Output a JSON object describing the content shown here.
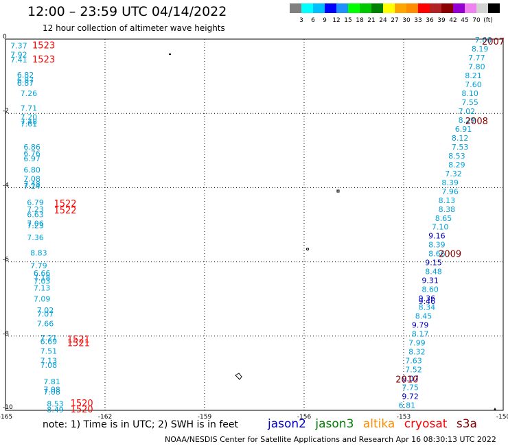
{
  "header": {
    "title": "12:00 – 23:59 UTC 04/14/2022",
    "subtitle": "12 hour collection of altimeter wave heights"
  },
  "colorbar": {
    "colors": [
      "#808080",
      "#00ffff",
      "#00bfff",
      "#0000ff",
      "#1e90ff",
      "#00ff00",
      "#00c800",
      "#008000",
      "#ffff00",
      "#ffa500",
      "#ff8c00",
      "#ff0000",
      "#b22222",
      "#8b0000",
      "#9400d3",
      "#ee82ee",
      "#d3d3d3",
      "#000000"
    ],
    "labels": [
      "3",
      "6",
      "9",
      "12",
      "15",
      "18",
      "21",
      "24",
      "27",
      "30",
      "33",
      "36",
      "39",
      "42",
      "45",
      "70",
      "(ft)"
    ]
  },
  "footer": {
    "note": "note:  1) Time is in UTC;  2) SWH is in feet",
    "legend": [
      {
        "name": "jason2",
        "color": "#0000cc"
      },
      {
        "name": "jason3",
        "color": "#008000"
      },
      {
        "name": "altika",
        "color": "#ff8c00"
      },
      {
        "name": "cryosat",
        "color": "#ff0000"
      },
      {
        "name": "s3a",
        "color": "#8b0000"
      }
    ],
    "credit": "NOAA/NESDIS Center for Satellite Applications and Research     Apr 16 08:30:13 UTC 2022"
  },
  "chart_data": {
    "type": "scatter",
    "xlim": [
      -165,
      -150
    ],
    "ylim": [
      -10,
      0
    ],
    "x_ticks": [
      "-165",
      "-162",
      "-159",
      "-156",
      "-153",
      "-150"
    ],
    "y_ticks": [
      "0",
      "-2",
      "-4",
      "-6",
      "-8",
      "-10"
    ],
    "grid": true,
    "series": [
      {
        "color": "#00a0d8",
        "points": [
          {
            "x": -164.6,
            "y": -0.18,
            "v": "7.37"
          },
          {
            "x": -164.6,
            "y": -0.42,
            "v": "7.92"
          },
          {
            "x": -164.6,
            "y": -0.55,
            "v": "7.41"
          },
          {
            "x": -164.4,
            "y": -0.96,
            "v": "6.82"
          },
          {
            "x": -164.4,
            "y": -1.1,
            "v": "6.87"
          },
          {
            "x": -164.4,
            "y": -1.18,
            "v": "6.87"
          },
          {
            "x": -164.3,
            "y": -1.46,
            "v": "7.26"
          },
          {
            "x": -164.3,
            "y": -1.86,
            "v": "7.71"
          },
          {
            "x": -164.3,
            "y": -2.1,
            "v": "7.20"
          },
          {
            "x": -164.3,
            "y": -2.22,
            "v": "7.48"
          },
          {
            "x": -164.3,
            "y": -2.28,
            "v": "7.61"
          },
          {
            "x": -164.2,
            "y": -2.9,
            "v": "6.86"
          },
          {
            "x": -164.2,
            "y": -3.08,
            "v": "6.76"
          },
          {
            "x": -164.2,
            "y": -3.22,
            "v": "6.97"
          },
          {
            "x": -164.2,
            "y": -3.52,
            "v": "6.80"
          },
          {
            "x": -164.2,
            "y": -3.76,
            "v": "7.08"
          },
          {
            "x": -164.2,
            "y": -3.9,
            "v": "7.48"
          },
          {
            "x": -164.2,
            "y": -3.96,
            "v": "7.24"
          },
          {
            "x": -164.1,
            "y": -4.4,
            "v": "6.79"
          },
          {
            "x": -164.1,
            "y": -4.58,
            "v": "7.23"
          },
          {
            "x": -164.1,
            "y": -4.72,
            "v": "6.63"
          },
          {
            "x": -164.1,
            "y": -4.96,
            "v": "7.06"
          },
          {
            "x": -164.1,
            "y": -5.02,
            "v": "7.23"
          },
          {
            "x": -164.1,
            "y": -5.34,
            "v": "7.36"
          },
          {
            "x": -164.0,
            "y": -5.76,
            "v": "8.83"
          },
          {
            "x": -164.0,
            "y": -6.1,
            "v": "7.79"
          },
          {
            "x": -163.9,
            "y": -6.3,
            "v": "6.66"
          },
          {
            "x": -163.9,
            "y": -6.42,
            "v": "7.18"
          },
          {
            "x": -163.9,
            "y": -6.52,
            "v": "7.03"
          },
          {
            "x": -163.9,
            "y": -6.7,
            "v": "7.13"
          },
          {
            "x": -163.9,
            "y": -7.0,
            "v": "7.09"
          },
          {
            "x": -163.8,
            "y": -7.3,
            "v": "7.02"
          },
          {
            "x": -163.8,
            "y": -7.4,
            "v": "7.07"
          },
          {
            "x": -163.8,
            "y": -7.66,
            "v": "7.66"
          },
          {
            "x": -163.7,
            "y": -8.04,
            "v": "7.21"
          },
          {
            "x": -163.7,
            "y": -8.14,
            "v": "6.69"
          },
          {
            "x": -163.7,
            "y": -8.4,
            "v": "7.51"
          },
          {
            "x": -163.7,
            "y": -8.66,
            "v": "7.13"
          },
          {
            "x": -163.7,
            "y": -8.78,
            "v": "7.08"
          },
          {
            "x": -163.6,
            "y": -9.22,
            "v": "7.81"
          },
          {
            "x": -163.6,
            "y": -9.44,
            "v": "7.08"
          },
          {
            "x": -163.6,
            "y": -9.5,
            "v": "7.08"
          },
          {
            "x": -163.5,
            "y": -9.82,
            "v": "8.53"
          },
          {
            "x": -163.5,
            "y": -9.98,
            "v": "8.49"
          }
        ]
      },
      {
        "color": "#00a0d8",
        "points": [
          {
            "x": -150.6,
            "y": -0.02,
            "v": "7.66"
          },
          {
            "x": -150.7,
            "y": -0.26,
            "v": "8.19"
          },
          {
            "x": -150.8,
            "y": -0.5,
            "v": "7.77"
          },
          {
            "x": -150.8,
            "y": -0.74,
            "v": "7.80"
          },
          {
            "x": -150.9,
            "y": -0.98,
            "v": "8.21"
          },
          {
            "x": -150.9,
            "y": -1.22,
            "v": "7.60"
          },
          {
            "x": -151.0,
            "y": -1.46,
            "v": "8.10"
          },
          {
            "x": -151.0,
            "y": -1.7,
            "v": "7.55"
          },
          {
            "x": -151.1,
            "y": -1.94,
            "v": "7.02"
          },
          {
            "x": -151.1,
            "y": -2.18,
            "v": "8.29"
          },
          {
            "x": -151.2,
            "y": -2.42,
            "v": "6.91"
          },
          {
            "x": -151.3,
            "y": -2.66,
            "v": "8.12"
          },
          {
            "x": -151.3,
            "y": -2.9,
            "v": "7.53"
          },
          {
            "x": -151.4,
            "y": -3.14,
            "v": "8.53"
          },
          {
            "x": -151.4,
            "y": -3.38,
            "v": "8.29"
          },
          {
            "x": -151.5,
            "y": -3.62,
            "v": "7.32"
          },
          {
            "x": -151.6,
            "y": -3.86,
            "v": "8.39"
          },
          {
            "x": -151.6,
            "y": -4.1,
            "v": "7.96"
          },
          {
            "x": -151.7,
            "y": -4.34,
            "v": "8.13"
          },
          {
            "x": -151.7,
            "y": -4.58,
            "v": "8.38"
          },
          {
            "x": -151.8,
            "y": -4.82,
            "v": "8.65"
          },
          {
            "x": -151.9,
            "y": -5.06,
            "v": "7.10"
          },
          {
            "x": -152.0,
            "y": -5.54,
            "v": "8.39"
          },
          {
            "x": -152.0,
            "y": -5.78,
            "v": "8.66"
          },
          {
            "x": -152.1,
            "y": -6.26,
            "v": "8.48"
          },
          {
            "x": -152.2,
            "y": -6.74,
            "v": "8.60"
          },
          {
            "x": -152.3,
            "y": -7.22,
            "v": "8.34"
          },
          {
            "x": -152.4,
            "y": -7.46,
            "v": "8.45"
          },
          {
            "x": -152.5,
            "y": -7.94,
            "v": "8.17"
          },
          {
            "x": -152.6,
            "y": -8.18,
            "v": "7.99"
          },
          {
            "x": -152.6,
            "y": -8.42,
            "v": "8.32"
          },
          {
            "x": -152.7,
            "y": -8.66,
            "v": "7.63"
          },
          {
            "x": -152.7,
            "y": -8.9,
            "v": "7.52"
          },
          {
            "x": -152.8,
            "y": -9.38,
            "v": "7.75"
          },
          {
            "x": -152.9,
            "y": -9.86,
            "v": "6.81"
          }
        ]
      },
      {
        "color": "#0000c0",
        "points": [
          {
            "x": -152.0,
            "y": -5.3,
            "v": "9.16"
          },
          {
            "x": -152.1,
            "y": -6.02,
            "v": "9.15"
          },
          {
            "x": -152.2,
            "y": -6.5,
            "v": "9.31"
          },
          {
            "x": -152.3,
            "y": -6.98,
            "v": "9.36"
          },
          {
            "x": -152.3,
            "y": -7.06,
            "v": "9.46"
          },
          {
            "x": -152.5,
            "y": -7.7,
            "v": "9.79"
          },
          {
            "x": -152.8,
            "y": -9.14,
            "v": "9.07"
          },
          {
            "x": -152.8,
            "y": -9.62,
            "v": "9.72"
          }
        ]
      }
    ],
    "annotations": [
      {
        "text": "1523",
        "x": -163.85,
        "y": -0.16,
        "color": "#ff0000"
      },
      {
        "text": "1523",
        "x": -163.85,
        "y": -0.54,
        "color": "#ff0000"
      },
      {
        "text": "1522",
        "x": -163.2,
        "y": -4.42,
        "color": "#ff0000"
      },
      {
        "text": "1522",
        "x": -163.2,
        "y": -4.6,
        "color": "#ff0000"
      },
      {
        "text": "1521",
        "x": -162.8,
        "y": -8.08,
        "color": "#ff0000"
      },
      {
        "text": "1521",
        "x": -162.8,
        "y": -8.18,
        "color": "#ff0000"
      },
      {
        "text": "1520",
        "x": -162.7,
        "y": -9.8,
        "color": "#ff0000"
      },
      {
        "text": "1520",
        "x": -162.7,
        "y": -9.96,
        "color": "#ff0000"
      },
      {
        "text": "2007",
        "x": -150.3,
        "y": -0.06,
        "color": "#8b0000"
      },
      {
        "text": "2008",
        "x": -150.8,
        "y": -2.2,
        "color": "#8b0000"
      },
      {
        "text": "2009",
        "x": -151.6,
        "y": -5.78,
        "color": "#8b0000"
      },
      {
        "text": "2010",
        "x": -152.9,
        "y": -9.16,
        "color": "#8b0000"
      }
    ]
  }
}
